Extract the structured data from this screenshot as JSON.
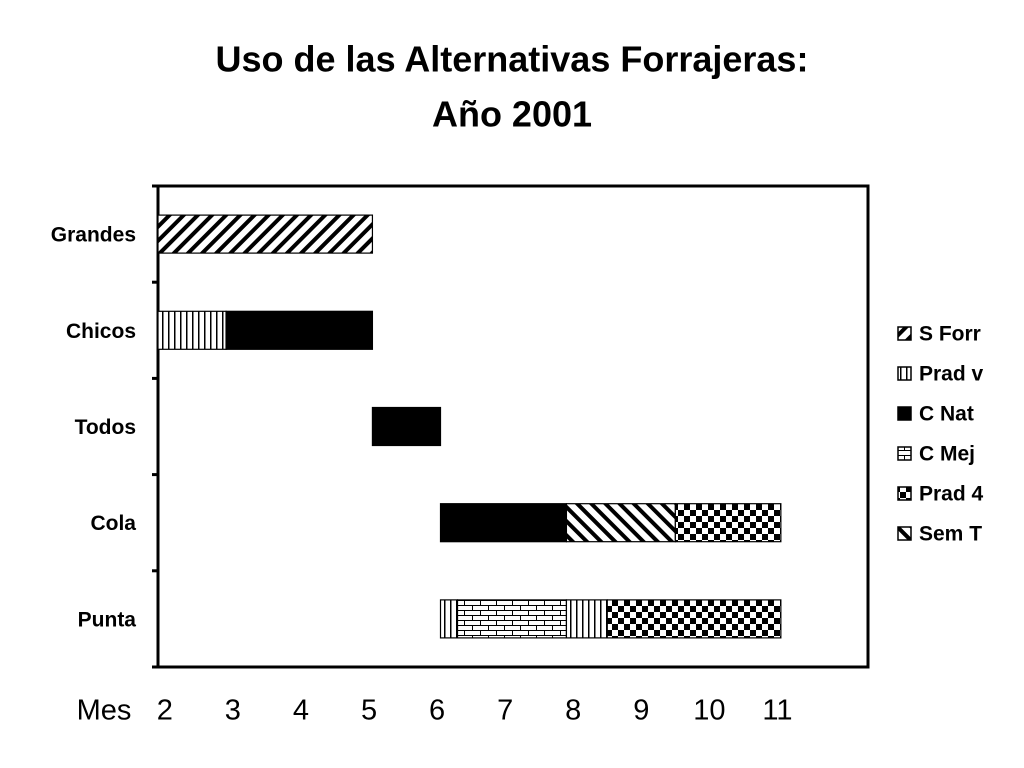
{
  "chart_data": {
    "type": "gantt",
    "title": "Uso de las Alternativas Forrajeras:",
    "subtitle": "Año 2001",
    "xlabel": "Mes",
    "categories": [
      "Grandes",
      "Chicos",
      "Todos",
      "Cola",
      "Punta"
    ],
    "series": [
      {
        "name": "S Forr",
        "pattern": "diag-up",
        "color": "#000000"
      },
      {
        "name": "Prad v",
        "pattern": "vertical",
        "color": "#000000"
      },
      {
        "name": "C Nat",
        "pattern": "solid",
        "color": "#000000"
      },
      {
        "name": "C Mej",
        "pattern": "brick",
        "color": "#000000"
      },
      {
        "name": "Prad 4",
        "pattern": "checker",
        "color": "#000000"
      },
      {
        "name": "Sem T",
        "pattern": "diag-down",
        "color": "#000000"
      }
    ],
    "tasks": [
      {
        "category": "Grandes",
        "series": "S Forr",
        "start": 1.9,
        "end": 5.05
      },
      {
        "category": "Chicos",
        "series": "Prad v",
        "start": 1.9,
        "end": 2.9
      },
      {
        "category": "Chicos",
        "series": "C Nat",
        "start": 2.9,
        "end": 5.05
      },
      {
        "category": "Todos",
        "series": "C Nat",
        "start": 5.05,
        "end": 6.05
      },
      {
        "category": "Cola",
        "series": "C Nat",
        "start": 6.05,
        "end": 7.9
      },
      {
        "category": "Cola",
        "series": "Sem T",
        "start": 7.9,
        "end": 9.5
      },
      {
        "category": "Cola",
        "series": "Prad 4",
        "start": 9.5,
        "end": 11.05
      },
      {
        "category": "Punta",
        "series": "Prad v",
        "start": 6.05,
        "end": 6.3
      },
      {
        "category": "Punta",
        "series": "C Mej",
        "start": 6.3,
        "end": 7.9
      },
      {
        "category": "Punta",
        "series": "Prad v",
        "start": 7.9,
        "end": 8.5
      },
      {
        "category": "Punta",
        "series": "Prad 4",
        "start": 8.5,
        "end": 11.05
      }
    ],
    "xlim": [
      1.9,
      12.33
    ],
    "xticks": [
      2,
      3,
      4,
      5,
      6,
      7,
      8,
      9,
      10,
      11
    ],
    "legend": "right"
  }
}
